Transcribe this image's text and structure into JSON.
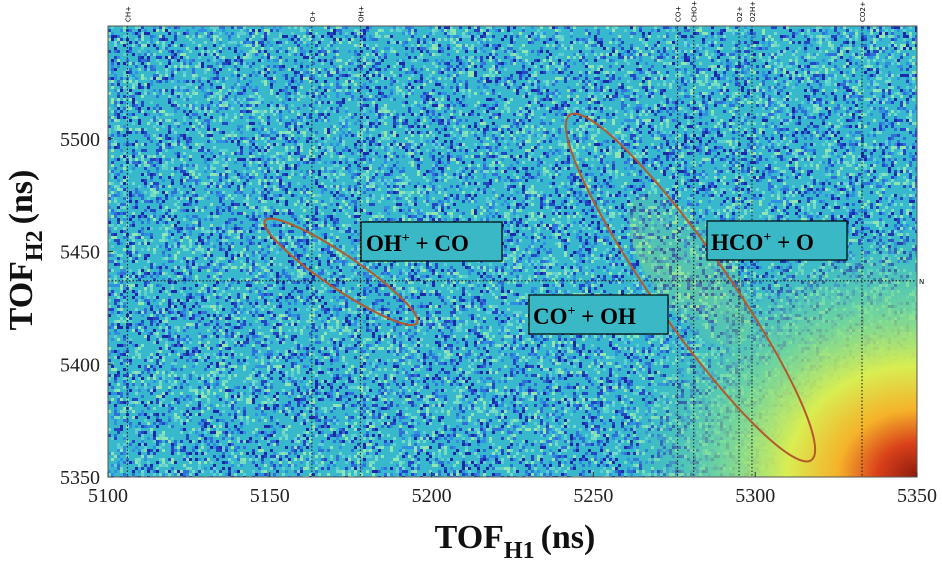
{
  "chart_data": {
    "type": "heatmap",
    "title": "",
    "xlabel": "TOF",
    "xlabel_sub": "H1",
    "xlabel_units": "(ns)",
    "ylabel": "TOF",
    "ylabel_sub": "H2",
    "ylabel_units": "(ns)",
    "xlim": [
      5100,
      5350
    ],
    "ylim": [
      5350,
      5550
    ],
    "xticks": [
      5100,
      5150,
      5200,
      5250,
      5300,
      5350
    ],
    "yticks": [
      5350,
      5400,
      5450,
      5500
    ],
    "vertical_lines": [
      {
        "x": 5106,
        "label": "CH+"
      },
      {
        "x": 5163,
        "label": "O+"
      },
      {
        "x": 5178,
        "label": "OH+"
      },
      {
        "x": 5276,
        "label": "CO+"
      },
      {
        "x": 5281,
        "label": "CHO+"
      },
      {
        "x": 5295,
        "label": "O2+"
      },
      {
        "x": 5299,
        "label": "O2H+"
      },
      {
        "x": 5333,
        "label": "CO2+"
      }
    ],
    "horizontal_line": {
      "y": 5437,
      "label": "N"
    },
    "regions": [
      {
        "name": "OH+ + CO",
        "cx": 5172,
        "cy": 5441,
        "major_ns": 27,
        "minor_ns": 5,
        "angle_deg": 34
      },
      {
        "name": "CO+ + OH",
        "cx": 5280,
        "cy": 5434,
        "major_ns": 62,
        "minor_ns": 11,
        "angle_deg": 55
      }
    ],
    "annotations": [
      {
        "id": "oh-co",
        "base": "OH",
        "sup": "+",
        "rest": " + CO"
      },
      {
        "id": "hco-o",
        "base": "HCO",
        "sup": "+",
        "rest": " + O"
      },
      {
        "id": "co-oh",
        "base": "CO",
        "sup": "+",
        "rest": " + OH"
      }
    ],
    "colormap": "jet",
    "colors": {
      "low": "#1f2fb0",
      "background": "#37b8cc",
      "mid": "#9fe08a",
      "high": "#a31e12",
      "line": "#222222",
      "ellipse": "#b35a2c"
    }
  }
}
